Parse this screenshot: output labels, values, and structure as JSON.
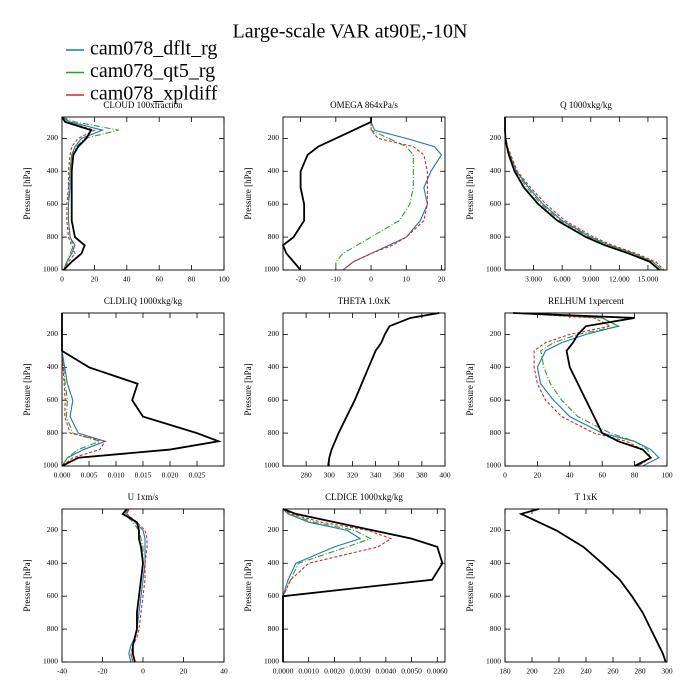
{
  "title": "Large-scale VAR at90E,-10N",
  "legend": [
    {
      "name": "cam078_dflt_rg",
      "color": "#1f77b4"
    },
    {
      "name": "cam078_qt5_rg",
      "color": "#2ca02c"
    },
    {
      "name": "cam078_xpldiff",
      "color": "#d62728"
    }
  ],
  "chart_data": [
    {
      "type": "line",
      "title": "CLOUD 100xfraction",
      "ylabel": "Pressure [hPa]",
      "xlim": [
        0,
        100
      ],
      "xticks": [
        0,
        20,
        40,
        60,
        80,
        100
      ],
      "ylim": [
        1000,
        70
      ],
      "yticks": [
        200,
        400,
        600,
        800,
        1000
      ],
      "y": [
        70,
        100,
        150,
        200,
        250,
        300,
        400,
        500,
        600,
        700,
        800,
        850,
        900,
        950,
        1000
      ],
      "series": [
        {
          "color": "#1f77b4",
          "dash": "solid",
          "values": [
            0,
            5,
            25,
            12,
            8,
            6,
            5,
            5,
            4,
            4,
            5,
            8,
            6,
            3,
            1
          ]
        },
        {
          "color": "#2ca02c",
          "dash": "dashdot",
          "values": [
            0,
            8,
            35,
            14,
            9,
            6,
            5,
            4,
            4,
            4,
            5,
            7,
            5,
            3,
            1
          ]
        },
        {
          "color": "#d62728",
          "dash": "dashed",
          "values": [
            0,
            3,
            20,
            10,
            6,
            5,
            4,
            4,
            3,
            3,
            4,
            6,
            8,
            4,
            1
          ]
        },
        {
          "color": "#000000",
          "dash": "thick",
          "values": [
            0,
            2,
            18,
            15,
            10,
            7,
            6,
            6,
            6,
            6,
            8,
            14,
            12,
            6,
            1
          ]
        }
      ]
    },
    {
      "type": "line",
      "title": "OMEGA  864xPa/s",
      "ylabel": "Pressure [hPa]",
      "xlim": [
        -25,
        21
      ],
      "xticks": [
        -20,
        -10,
        0,
        10,
        20
      ],
      "ylim": [
        1000,
        70
      ],
      "yticks": [
        200,
        400,
        600,
        800,
        1000
      ],
      "y": [
        70,
        100,
        150,
        200,
        250,
        300,
        400,
        500,
        600,
        700,
        800,
        850,
        900,
        950,
        1000
      ],
      "series": [
        {
          "color": "#1f77b4",
          "dash": "solid",
          "values": [
            0,
            0,
            1,
            10,
            18,
            20,
            17,
            15,
            16,
            14,
            10,
            5,
            0,
            -5,
            -8
          ]
        },
        {
          "color": "#2ca02c",
          "dash": "dashdot",
          "values": [
            0,
            0,
            0,
            5,
            10,
            12,
            12,
            12,
            11,
            8,
            0,
            -4,
            -8,
            -10,
            -10
          ]
        },
        {
          "color": "#d62728",
          "dash": "dashed",
          "values": [
            0,
            0,
            0,
            2,
            12,
            15,
            16,
            16,
            16,
            15,
            10,
            6,
            0,
            -5,
            -8
          ]
        },
        {
          "color": "#000000",
          "dash": "thick",
          "values": [
            0,
            0,
            -5,
            -10,
            -15,
            -18,
            -20,
            -20,
            -19,
            -19,
            -22,
            -25,
            -24,
            -22,
            -20
          ]
        }
      ]
    },
    {
      "type": "line",
      "title": "Q  1000xkg/kg",
      "ylabel": "Pressure [hPa]",
      "xlim": [
        0,
        17
      ],
      "xticks": [
        {
          "value": 3,
          "label": "3.000"
        },
        {
          "value": 6,
          "label": "6.000"
        },
        {
          "value": 9,
          "label": "9.000"
        },
        {
          "value": 12,
          "label": "12.000"
        },
        {
          "value": 15,
          "label": "15.000"
        }
      ],
      "ylim": [
        1000,
        70
      ],
      "yticks": [
        200,
        400,
        600,
        800,
        1000
      ],
      "y": [
        70,
        100,
        150,
        200,
        250,
        300,
        400,
        500,
        600,
        700,
        800,
        850,
        900,
        950,
        1000
      ],
      "series": [
        {
          "color": "#1f77b4",
          "dash": "solid",
          "values": [
            0,
            0,
            0,
            0.05,
            0.2,
            0.5,
            1.2,
            2.5,
            4,
            6,
            9,
            11,
            13.5,
            15.5,
            16.5
          ]
        },
        {
          "color": "#2ca02c",
          "dash": "dashdot",
          "values": [
            0,
            0,
            0,
            0.05,
            0.2,
            0.5,
            1.1,
            2.3,
            3.8,
            5.8,
            8.8,
            11,
            13.5,
            15.5,
            16.5
          ]
        },
        {
          "color": "#d62728",
          "dash": "dashed",
          "values": [
            0,
            0,
            0,
            0.05,
            0.25,
            0.6,
            1.3,
            2.7,
            4.3,
            6.3,
            9.3,
            11.3,
            13.8,
            15.8,
            16.7
          ]
        },
        {
          "color": "#000000",
          "dash": "thick",
          "values": [
            0,
            0,
            0,
            0.05,
            0.2,
            0.4,
            1,
            2,
            3.5,
            5.5,
            8.5,
            10.5,
            13,
            15.2,
            16.2
          ]
        }
      ]
    },
    {
      "type": "line",
      "title": "CLDLIQ  1000xkg/kg",
      "ylabel": "Pressure [hPa]",
      "xlim": [
        0,
        0.03
      ],
      "xticks": [
        {
          "value": 0,
          "label": "0.000"
        },
        {
          "value": 0.005,
          "label": "0.005"
        },
        {
          "value": 0.01,
          "label": "0.010"
        },
        {
          "value": 0.015,
          "label": "0.015"
        },
        {
          "value": 0.02,
          "label": "0.020"
        },
        {
          "value": 0.025,
          "label": "0.025"
        }
      ],
      "ylim": [
        1000,
        70
      ],
      "yticks": [
        200,
        400,
        600,
        800,
        1000
      ],
      "y": [
        70,
        100,
        150,
        200,
        250,
        300,
        400,
        500,
        600,
        700,
        800,
        850,
        900,
        950,
        1000
      ],
      "series": [
        {
          "color": "#1f77b4",
          "dash": "solid",
          "values": [
            0,
            0,
            0,
            0,
            0,
            0,
            0.0005,
            0.001,
            0.002,
            0.0015,
            0.003,
            0.008,
            0.004,
            0.001,
            0
          ]
        },
        {
          "color": "#2ca02c",
          "dash": "dashdot",
          "values": [
            0,
            0,
            0,
            0,
            0,
            0,
            0.0003,
            0.0006,
            0.001,
            0.0008,
            0.002,
            0.007,
            0.003,
            0.001,
            0
          ]
        },
        {
          "color": "#d62728",
          "dash": "dashed",
          "values": [
            0,
            0,
            0,
            0,
            0,
            0,
            0.0002,
            0.0004,
            0.0006,
            0.0005,
            0.0015,
            0.008,
            0.007,
            0.002,
            0
          ]
        },
        {
          "color": "#000000",
          "dash": "thick",
          "values": [
            0,
            0,
            0,
            0,
            0,
            0,
            0.005,
            0.014,
            0.013,
            0.015,
            0.025,
            0.029,
            0.02,
            0.003,
            0
          ]
        }
      ]
    },
    {
      "type": "line",
      "title": "THETA  1.0xK",
      "ylabel": "Pressure [hPa]",
      "xlim": [
        260,
        400
      ],
      "xticks": [
        280,
        300,
        320,
        340,
        360,
        380,
        400
      ],
      "ylim": [
        1000,
        70
      ],
      "yticks": [
        200,
        400,
        600,
        800,
        1000
      ],
      "y": [
        70,
        100,
        150,
        200,
        250,
        300,
        400,
        500,
        600,
        700,
        800,
        850,
        900,
        950,
        1000
      ],
      "series": [
        {
          "color": "#1f77b4",
          "dash": "solid",
          "values": [
            395,
            370,
            352,
            348,
            345,
            340,
            334,
            328,
            322,
            315,
            308,
            305,
            302,
            300,
            299
          ]
        },
        {
          "color": "#2ca02c",
          "dash": "dashdot",
          "values": [
            395,
            370,
            352,
            348,
            345,
            340,
            334,
            328,
            322,
            315,
            308,
            305,
            302,
            300,
            299
          ]
        },
        {
          "color": "#d62728",
          "dash": "dashed",
          "values": [
            395,
            370,
            352,
            348,
            345,
            340,
            334,
            328,
            322,
            315,
            308,
            305,
            302,
            300,
            299
          ]
        },
        {
          "color": "#000000",
          "dash": "thick",
          "values": [
            395,
            370,
            352,
            348,
            345,
            340,
            334,
            328,
            322,
            315,
            308,
            305,
            302,
            300,
            299
          ]
        }
      ]
    },
    {
      "type": "line",
      "title": "RELHUM  1xpercent",
      "ylabel": "Pressure [hPa]",
      "xlim": [
        0,
        100
      ],
      "xticks": [
        0,
        20,
        40,
        60,
        80,
        100
      ],
      "ylim": [
        1000,
        70
      ],
      "yticks": [
        200,
        400,
        600,
        800,
        1000
      ],
      "y": [
        70,
        100,
        150,
        200,
        250,
        300,
        400,
        500,
        600,
        700,
        800,
        850,
        900,
        950,
        1000
      ],
      "series": [
        {
          "color": "#1f77b4",
          "dash": "solid",
          "values": [
            5,
            60,
            70,
            50,
            35,
            25,
            20,
            22,
            30,
            40,
            60,
            80,
            90,
            95,
            85
          ]
        },
        {
          "color": "#2ca02c",
          "dash": "dashdot",
          "values": [
            5,
            60,
            70,
            45,
            30,
            22,
            24,
            28,
            35,
            45,
            65,
            80,
            88,
            90,
            82
          ]
        },
        {
          "color": "#d62728",
          "dash": "dashed",
          "values": [
            5,
            55,
            65,
            40,
            25,
            18,
            18,
            20,
            25,
            35,
            55,
            75,
            85,
            90,
            82
          ]
        },
        {
          "color": "#000000",
          "dash": "thick",
          "values": [
            5,
            80,
            50,
            45,
            42,
            38,
            40,
            45,
            50,
            55,
            60,
            70,
            85,
            90,
            80
          ]
        }
      ]
    },
    {
      "type": "line",
      "title": "U  1xm/s",
      "ylabel": "Pressure [hPa]",
      "xlim": [
        -40,
        40
      ],
      "xticks": [
        -40,
        -20,
        0,
        20,
        40
      ],
      "ylim": [
        1000,
        70
      ],
      "yticks": [
        200,
        400,
        600,
        800,
        1000
      ],
      "y": [
        70,
        100,
        150,
        200,
        250,
        300,
        400,
        500,
        600,
        700,
        800,
        850,
        900,
        950,
        1000
      ],
      "series": [
        {
          "color": "#1f77b4",
          "dash": "solid",
          "values": [
            -7,
            -8,
            -4,
            0,
            1,
            1,
            1,
            0,
            -1,
            -2,
            -3,
            -4,
            -6,
            -7,
            -6
          ]
        },
        {
          "color": "#2ca02c",
          "dash": "dashdot",
          "values": [
            -7,
            -9,
            -5,
            -2,
            -1,
            0,
            0,
            -1,
            -2,
            -3,
            -3,
            -4,
            -5,
            -6,
            -5
          ]
        },
        {
          "color": "#d62728",
          "dash": "dashed",
          "values": [
            -7,
            -8,
            -3,
            1,
            2,
            2,
            1,
            1,
            0,
            -1,
            -2,
            -3,
            -5,
            -6,
            -5
          ]
        },
        {
          "color": "#000000",
          "dash": "thick",
          "values": [
            -8,
            -10,
            -3,
            -2,
            -2,
            -1,
            0,
            -1,
            -2,
            -3,
            -3,
            -4,
            -5,
            -5,
            -4
          ]
        }
      ]
    },
    {
      "type": "line",
      "title": "CLDICE  1000xkg/kg",
      "ylabel": "Pressure [hPa]",
      "xlim": [
        0,
        0.0063
      ],
      "xticks": [
        {
          "value": 0,
          "label": "0.0000"
        },
        {
          "value": 0.001,
          "label": "0.0010"
        },
        {
          "value": 0.002,
          "label": "0.0020"
        },
        {
          "value": 0.003,
          "label": "0.0030"
        },
        {
          "value": 0.004,
          "label": "0.0040"
        },
        {
          "value": 0.005,
          "label": "0.0050"
        },
        {
          "value": 0.006,
          "label": "0.0060"
        }
      ],
      "ylim": [
        1000,
        70
      ],
      "yticks": [
        200,
        400,
        600,
        800,
        1000
      ],
      "y": [
        70,
        100,
        150,
        200,
        250,
        300,
        400,
        500,
        600,
        700,
        800,
        850,
        900,
        950,
        1000
      ],
      "series": [
        {
          "color": "#1f77b4",
          "dash": "solid",
          "values": [
            0,
            0.0002,
            0.001,
            0.0025,
            0.003,
            0.002,
            0.0005,
            0.0002,
            0,
            0,
            0,
            0,
            0,
            0,
            0
          ]
        },
        {
          "color": "#2ca02c",
          "dash": "dashdot",
          "values": [
            0,
            0.0002,
            0.0012,
            0.0028,
            0.0034,
            0.0025,
            0.0006,
            0.0003,
            0,
            0,
            0,
            0,
            0,
            0,
            0
          ]
        },
        {
          "color": "#d62728",
          "dash": "dashed",
          "values": [
            0,
            0.0003,
            0.0015,
            0.0033,
            0.0042,
            0.0037,
            0.001,
            0.0003,
            0,
            0,
            0,
            0,
            0,
            0,
            0
          ]
        },
        {
          "color": "#000000",
          "dash": "thick",
          "values": [
            0,
            0.0005,
            0.002,
            0.0035,
            0.005,
            0.006,
            0.0062,
            0.0058,
            0,
            0,
            0,
            0,
            0,
            0,
            0
          ]
        }
      ]
    },
    {
      "type": "line",
      "title": "T  1xK",
      "ylabel": "Pressure [hPa]",
      "xlim": [
        180,
        300
      ],
      "xticks": [
        180,
        200,
        220,
        240,
        260,
        280,
        300
      ],
      "ylim": [
        1000,
        70
      ],
      "yticks": [
        200,
        400,
        600,
        800,
        1000
      ],
      "y": [
        70,
        100,
        150,
        200,
        250,
        300,
        400,
        500,
        600,
        700,
        800,
        850,
        900,
        950,
        1000
      ],
      "series": [
        {
          "color": "#1f77b4",
          "dash": "solid",
          "values": [
            205,
            192,
            205,
            218,
            228,
            238,
            252,
            265,
            274,
            282,
            288,
            291,
            294,
            297,
            299
          ]
        },
        {
          "color": "#2ca02c",
          "dash": "dashdot",
          "values": [
            205,
            192,
            205,
            218,
            228,
            238,
            252,
            265,
            274,
            282,
            288,
            291,
            294,
            297,
            299
          ]
        },
        {
          "color": "#d62728",
          "dash": "dashed",
          "values": [
            205,
            192,
            205,
            218,
            228,
            238,
            252,
            265,
            274,
            282,
            288,
            291,
            294,
            297,
            299
          ]
        },
        {
          "color": "#000000",
          "dash": "thick",
          "values": [
            205,
            192,
            205,
            218,
            228,
            238,
            252,
            265,
            274,
            282,
            288,
            291,
            294,
            297,
            299
          ]
        }
      ]
    }
  ]
}
